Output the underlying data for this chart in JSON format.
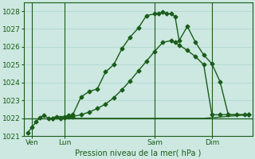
{
  "bg_color": "#cce8e0",
  "grid_color": "#aad4cc",
  "line_color": "#1a5c1a",
  "title": "Pression niveau de la mer( hPa )",
  "ylim": [
    1021.0,
    1028.5
  ],
  "yticks": [
    1021,
    1022,
    1023,
    1024,
    1025,
    1026,
    1027,
    1028
  ],
  "xlim": [
    0,
    28
  ],
  "xlabel_ticks_x": [
    1,
    5,
    16,
    23
  ],
  "xlabel_ticks_labels": [
    "Ven",
    "Lun",
    "Sam",
    "Dim"
  ],
  "vlines_x": [
    1,
    5,
    16,
    23
  ],
  "hline_y": 1022.0,
  "line1_x": [
    0.5,
    1.0,
    1.5,
    2.0,
    2.5,
    3.0,
    3.5,
    4.0,
    5.0,
    5.5,
    6.0,
    7.0,
    8.0,
    9.0,
    10.0,
    11.0,
    12.0,
    13.0,
    14.0,
    15.0,
    16.0,
    16.5,
    17.0,
    17.5,
    18.0,
    18.5,
    19.0,
    20.0,
    21.0,
    22.0,
    23.0,
    24.0,
    25.0,
    26.0,
    27.0,
    27.5
  ],
  "line1_y": [
    1021.2,
    1021.5,
    1021.8,
    1022.05,
    1022.15,
    1022.0,
    1022.0,
    1022.1,
    1022.1,
    1022.15,
    1022.2,
    1023.2,
    1023.5,
    1023.65,
    1024.6,
    1025.0,
    1025.9,
    1026.55,
    1027.05,
    1027.75,
    1027.85,
    1027.85,
    1027.95,
    1027.85,
    1027.85,
    1027.7,
    1026.35,
    1027.15,
    1026.25,
    1025.55,
    1025.05,
    1024.05,
    1022.2,
    1022.2,
    1022.2,
    1022.2
  ],
  "line2_x": [
    3.5,
    4.5,
    5.0,
    5.5,
    6.0,
    7.0,
    8.0,
    9.0,
    10.0,
    11.0,
    12.0,
    13.0,
    14.0,
    15.0,
    16.0,
    17.0,
    18.0,
    18.5,
    19.0,
    20.0,
    21.0,
    22.0,
    23.0,
    24.0,
    25.0,
    27.5
  ],
  "line2_y": [
    1022.0,
    1022.0,
    1022.05,
    1022.1,
    1022.1,
    1022.2,
    1022.35,
    1022.55,
    1022.8,
    1023.15,
    1023.6,
    1024.1,
    1024.65,
    1025.2,
    1025.75,
    1026.25,
    1026.35,
    1026.25,
    1026.1,
    1025.8,
    1025.45,
    1025.0,
    1022.2,
    1022.2,
    1022.2,
    1022.2
  ],
  "line3_x": [
    3.5,
    22.0,
    27.5
  ],
  "line3_y": [
    1022.0,
    1022.0,
    1022.2
  ]
}
